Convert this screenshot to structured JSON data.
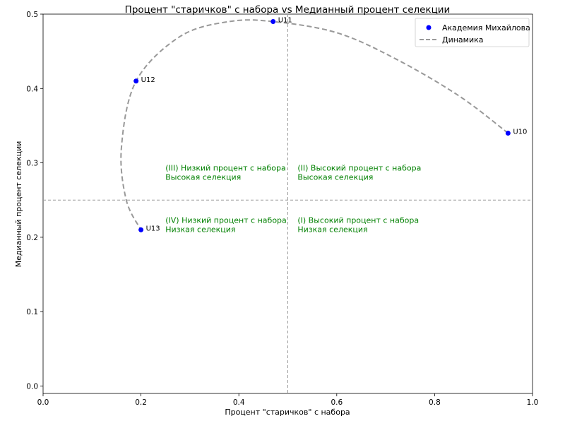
{
  "chart_data": {
    "type": "scatter",
    "title": "Процент \"старичков\" с набора vs Медианный процент селекции",
    "xlabel": "Процент \"старичков\" с набора",
    "ylabel": "Медианный процент селекции",
    "xlim": [
      0.0,
      1.0
    ],
    "ylim": [
      -0.01,
      0.5
    ],
    "xticks": [
      "0.0",
      "0.2",
      "0.4",
      "0.6",
      "0.8",
      "1.0"
    ],
    "xtick_values": [
      0.0,
      0.2,
      0.4,
      0.6,
      0.8,
      1.0
    ],
    "yticks": [
      "0.0",
      "0.1",
      "0.2",
      "0.3",
      "0.4",
      "0.5"
    ],
    "ytick_values": [
      0.0,
      0.1,
      0.2,
      0.3,
      0.4,
      0.5
    ],
    "grid": false,
    "legend_position": "top-right",
    "series": [
      {
        "name": "Академия Михайлова",
        "color": "#0000ff",
        "points": [
          {
            "label": "U10",
            "x": 0.95,
            "y": 0.34
          },
          {
            "label": "U11",
            "x": 0.47,
            "y": 0.49
          },
          {
            "label": "U12",
            "x": 0.19,
            "y": 0.41
          },
          {
            "label": "U13",
            "x": 0.2,
            "y": 0.21
          }
        ]
      },
      {
        "name": "Динамика",
        "color": "#999999",
        "style": "dashed",
        "points": [
          {
            "x": 0.95,
            "y": 0.34
          },
          {
            "x": 0.85,
            "y": 0.39
          },
          {
            "x": 0.72,
            "y": 0.44
          },
          {
            "x": 0.6,
            "y": 0.475
          },
          {
            "x": 0.47,
            "y": 0.49
          },
          {
            "x": 0.38,
            "y": 0.49
          },
          {
            "x": 0.28,
            "y": 0.47
          },
          {
            "x": 0.19,
            "y": 0.41
          },
          {
            "x": 0.16,
            "y": 0.32
          },
          {
            "x": 0.17,
            "y": 0.25
          },
          {
            "x": 0.2,
            "y": 0.21
          }
        ]
      }
    ],
    "reference_lines": {
      "x": 0.5,
      "y": 0.25,
      "color": "#999999",
      "style": "dashed"
    },
    "quadrant_labels": [
      {
        "id": "q3",
        "line1": "(III) Низкий процент с набора",
        "line2": "Высокая селекция",
        "x": 0.25,
        "y": 0.28
      },
      {
        "id": "q2",
        "line1": "(II) Высокий процент с набора",
        "line2": "Высокая селекция",
        "x": 0.52,
        "y": 0.28
      },
      {
        "id": "q4",
        "line1": "(IV) Низкий процент с набора",
        "line2": "Низкая селекция",
        "x": 0.25,
        "y": 0.21
      },
      {
        "id": "q1",
        "line1": "(I) Высокий процент с набора",
        "line2": "Низкая селекция",
        "x": 0.52,
        "y": 0.21
      }
    ],
    "quadrant_label_color": "#008000"
  }
}
